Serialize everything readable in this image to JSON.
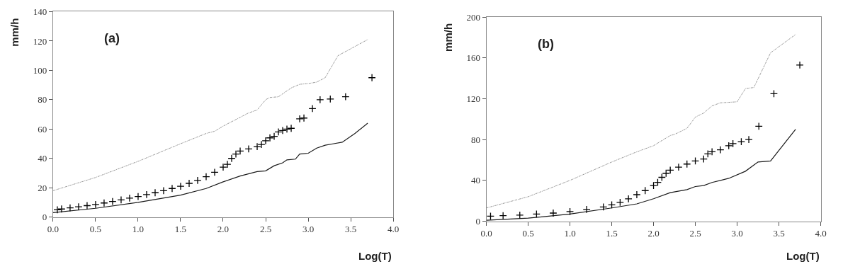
{
  "chart_data": [
    {
      "type": "line",
      "title": "(a)",
      "xlabel": "Log(T)",
      "ylabel": "mm/h",
      "xlim": [
        0,
        4
      ],
      "ylim": [
        0,
        140
      ],
      "xticks": [
        {
          "value": 0,
          "label": "0.0"
        },
        {
          "value": 0.5,
          "label": "0.5"
        },
        {
          "value": 1,
          "label": "1.0"
        },
        {
          "value": 1.5,
          "label": "1.5"
        },
        {
          "value": 2,
          "label": "2.0"
        },
        {
          "value": 2.5,
          "label": "2.5"
        },
        {
          "value": 3,
          "label": "3.0"
        },
        {
          "value": 3.5,
          "label": "3.5"
        },
        {
          "value": 4,
          "label": "4.0"
        }
      ],
      "yticks": [
        0,
        20,
        40,
        60,
        80,
        100,
        120,
        140
      ],
      "series": [
        {
          "color": "#8c8c8c",
          "line_style": "dashed",
          "x": [
            0,
            0.5,
            1.0,
            1.5,
            1.8,
            1.9,
            2.0,
            2.2,
            2.3,
            2.4,
            2.5,
            2.55,
            2.65,
            2.8,
            2.9,
            3.0,
            3.1,
            3.2,
            3.35,
            3.7
          ],
          "values": [
            18,
            27,
            38,
            50,
            57,
            58.5,
            62,
            68,
            71,
            73,
            80,
            81.5,
            82,
            88,
            90.5,
            91,
            92,
            95,
            110,
            121
          ]
        },
        {
          "color": "#1a1a1a",
          "line_style": "solid",
          "x": [
            0,
            0.5,
            1.0,
            1.5,
            1.8,
            2.0,
            2.2,
            2.4,
            2.5,
            2.6,
            2.7,
            2.75,
            2.85,
            2.9,
            3.0,
            3.1,
            3.2,
            3.3,
            3.4,
            3.55,
            3.7
          ],
          "values": [
            3,
            6,
            10,
            15,
            19.5,
            24,
            28,
            31,
            31.5,
            35,
            37,
            39,
            39.5,
            43,
            43.5,
            47,
            49,
            50,
            51,
            57,
            64
          ]
        },
        {
          "type": "scatter",
          "marker": "cross",
          "color": "#000000",
          "x": [
            0.05,
            0.1,
            0.2,
            0.3,
            0.4,
            0.5,
            0.6,
            0.7,
            0.8,
            0.9,
            1.0,
            1.1,
            1.2,
            1.3,
            1.4,
            1.5,
            1.6,
            1.7,
            1.8,
            1.9,
            2.0,
            2.05,
            2.1,
            2.15,
            2.2,
            2.3,
            2.4,
            2.45,
            2.5,
            2.55,
            2.6,
            2.65,
            2.7,
            2.75,
            2.8,
            2.9,
            2.95,
            3.05,
            3.14,
            3.26,
            3.44,
            3.75
          ],
          "values": [
            5,
            5.5,
            6.3,
            7,
            7.8,
            8.6,
            9.6,
            10.6,
            11.7,
            12.9,
            14,
            15.3,
            16.6,
            18,
            19.5,
            21,
            23,
            25,
            27.5,
            30.5,
            34,
            36,
            40,
            43,
            45,
            46.5,
            48,
            49.5,
            52,
            54,
            55,
            58,
            59,
            60,
            60.5,
            67,
            67.5,
            74,
            80,
            80.5,
            82,
            95
          ]
        }
      ]
    },
    {
      "type": "line",
      "title": "(b)",
      "xlabel": "Log(T)",
      "ylabel": "mm/h",
      "xlim": [
        0,
        4
      ],
      "ylim": [
        0,
        200
      ],
      "xticks": [
        {
          "value": 0,
          "label": "0.0"
        },
        {
          "value": 0.5,
          "label": "0.5"
        },
        {
          "value": 1,
          "label": "1.0"
        },
        {
          "value": 1.5,
          "label": "1.5"
        },
        {
          "value": 2,
          "label": "2.0"
        },
        {
          "value": 2.5,
          "label": "2.5"
        },
        {
          "value": 3,
          "label": "3.0"
        },
        {
          "value": 3.5,
          "label": "3.5"
        },
        {
          "value": 4,
          "label": "4.0"
        }
      ],
      "yticks": [
        0,
        40,
        80,
        120,
        160,
        200
      ],
      "series": [
        {
          "color": "#8c8c8c",
          "line_style": "dashed",
          "x": [
            0,
            0.5,
            1.0,
            1.5,
            1.8,
            2.0,
            2.2,
            2.25,
            2.4,
            2.5,
            2.6,
            2.7,
            2.8,
            3.0,
            3.1,
            3.2,
            3.4,
            3.7
          ],
          "values": [
            13,
            24,
            40,
            58,
            68,
            74,
            84,
            85,
            91,
            102,
            106,
            113,
            116,
            117,
            130,
            131,
            165,
            183
          ]
        },
        {
          "color": "#1a1a1a",
          "line_style": "solid",
          "x": [
            0,
            0.5,
            1.0,
            1.5,
            1.8,
            2.0,
            2.2,
            2.4,
            2.5,
            2.6,
            2.7,
            2.9,
            3.1,
            3.25,
            3.4,
            3.7
          ],
          "values": [
            1,
            3,
            7,
            13,
            17,
            22,
            28,
            31,
            34,
            35,
            38,
            42,
            49,
            58,
            59,
            90
          ]
        },
        {
          "type": "scatter",
          "marker": "cross",
          "color": "#000000",
          "x": [
            0.05,
            0.2,
            0.4,
            0.6,
            0.8,
            1.0,
            1.2,
            1.4,
            1.5,
            1.6,
            1.7,
            1.8,
            1.9,
            2.0,
            2.05,
            2.1,
            2.15,
            2.2,
            2.3,
            2.4,
            2.5,
            2.6,
            2.65,
            2.7,
            2.8,
            2.9,
            2.95,
            3.05,
            3.14,
            3.26,
            3.44,
            3.75
          ],
          "values": [
            5,
            5.5,
            6,
            7,
            8,
            9.5,
            11.5,
            14,
            16,
            18.5,
            22,
            26,
            30,
            35,
            38,
            43,
            47,
            50,
            53,
            56,
            59,
            61,
            66,
            68,
            70,
            74,
            76,
            78,
            80,
            93,
            125,
            153
          ]
        }
      ]
    }
  ]
}
